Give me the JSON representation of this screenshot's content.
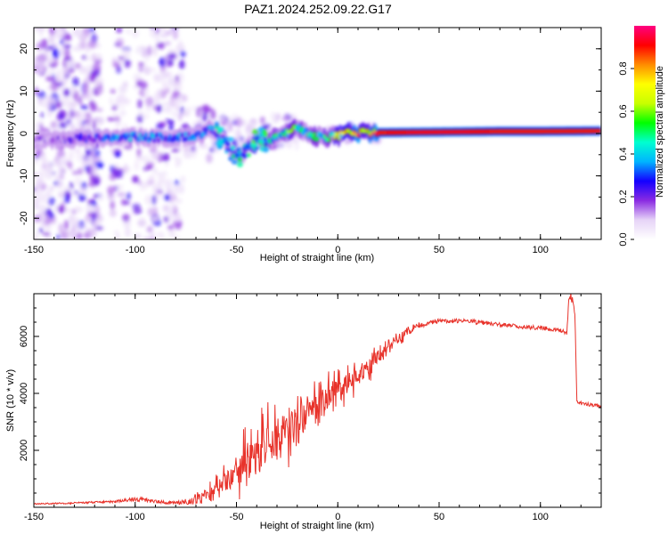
{
  "figure": {
    "title": "PAZ1.2024.252.09.22.G17"
  },
  "chart_data": [
    {
      "type": "heatmap",
      "xlabel": "Height of straight line (km)",
      "ylabel": "Frequency (Hz)",
      "xlim": [
        -150,
        130
      ],
      "ylim": [
        -25,
        25
      ],
      "x_ticks": [
        -150,
        -100,
        -50,
        0,
        50,
        100
      ],
      "y_ticks": [
        -20,
        -10,
        0,
        10,
        20
      ],
      "colorbar": {
        "label": "Normalized spectral amplitude",
        "ticks": [
          0.0,
          0.2,
          0.4,
          0.6,
          0.8
        ],
        "range": [
          0,
          1
        ],
        "colormap": [
          "#ffffff",
          "#e6d4f7",
          "#8a2be2",
          "#1400ff",
          "#00b4ff",
          "#00ffd0",
          "#00ff00",
          "#c8ff00",
          "#ffff00",
          "#ff8c00",
          "#ff0000",
          "#ff0080"
        ]
      },
      "ridge": {
        "x": [
          -150,
          -140,
          -130,
          -120,
          -110,
          -100,
          -90,
          -80,
          -70,
          -62,
          -56,
          -52,
          -48,
          -44,
          -40,
          -35,
          -30,
          -25,
          -20,
          -15,
          -10,
          -5,
          0,
          5,
          10,
          20,
          40,
          60,
          80,
          100,
          130
        ],
        "freq": [
          -1.8,
          -1.5,
          -1.2,
          -1.0,
          -0.8,
          -0.8,
          -0.9,
          -1.0,
          -0.5,
          1.0,
          -1.5,
          -4.5,
          -6.0,
          -3.0,
          -1.0,
          -2.0,
          -1.0,
          0.0,
          1.5,
          0.0,
          -0.8,
          -1.0,
          -0.5,
          0.0,
          0.2,
          0.2,
          0.3,
          0.4,
          0.5,
          0.5,
          0.6
        ],
        "amplitude": [
          0.15,
          0.15,
          0.2,
          0.25,
          0.3,
          0.35,
          0.35,
          0.35,
          0.3,
          0.3,
          0.25,
          0.25,
          0.25,
          0.3,
          0.35,
          0.4,
          0.45,
          0.5,
          0.55,
          0.5,
          0.45,
          0.5,
          0.55,
          0.7,
          0.8,
          0.9,
          0.92,
          0.92,
          0.9,
          0.9,
          0.9
        ]
      }
    },
    {
      "type": "line",
      "xlabel": "Height of straight line (km)",
      "ylabel": "SNR (10 * v/v)",
      "xlim": [
        -150,
        130
      ],
      "ylim": [
        0,
        7500
      ],
      "x_ticks": [
        -150,
        -100,
        -50,
        0,
        50,
        100
      ],
      "y_ticks": [
        2000,
        4000,
        6000
      ],
      "series": [
        {
          "color": "#e8332b",
          "x": [
            -150,
            -130,
            -110,
            -100,
            -90,
            -80,
            -75,
            -70,
            -65,
            -60,
            -55,
            -50,
            -45,
            -40,
            -35,
            -30,
            -25,
            -20,
            -15,
            -10,
            -5,
            0,
            5,
            10,
            15,
            20,
            25,
            30,
            35,
            40,
            50,
            60,
            70,
            80,
            90,
            100,
            110,
            113,
            114,
            115,
            116,
            117,
            118,
            120,
            125,
            130
          ],
          "y": [
            120,
            150,
            200,
            300,
            200,
            150,
            200,
            300,
            500,
            700,
            900,
            1200,
            1600,
            1900,
            2200,
            2500,
            2700,
            2900,
            3300,
            3500,
            3900,
            4100,
            4400,
            4700,
            4900,
            5200,
            5500,
            5900,
            6200,
            6400,
            6550,
            6550,
            6500,
            6400,
            6350,
            6300,
            6200,
            6150,
            7200,
            7450,
            7200,
            6900,
            3700,
            3650,
            3600,
            3550
          ],
          "noise": [
            20,
            30,
            40,
            80,
            60,
            50,
            100,
            200,
            350,
            500,
            800,
            1200,
            1300,
            1400,
            1500,
            1500,
            1400,
            1300,
            1200,
            1100,
            1000,
            900,
            800,
            700,
            600,
            500,
            400,
            300,
            150,
            100,
            80,
            80,
            80,
            80,
            80,
            80,
            80,
            80,
            100,
            150,
            150,
            150,
            60,
            60,
            60,
            60
          ]
        }
      ]
    }
  ]
}
